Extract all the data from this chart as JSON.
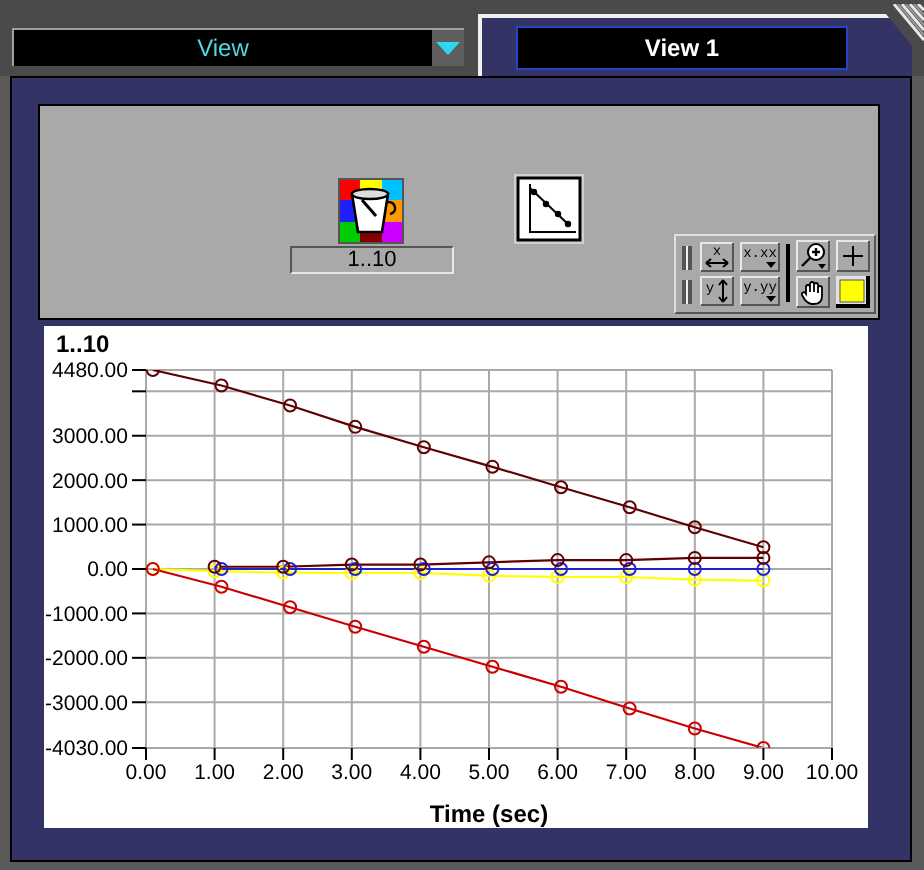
{
  "chart_data": {
    "type": "line",
    "ylabel": "1..10",
    "xlabel": "Time (sec)",
    "xlim": [
      0,
      10
    ],
    "xticks": [
      {
        "value": 0,
        "label": "0.00"
      },
      {
        "value": 1,
        "label": "1.00"
      },
      {
        "value": 2,
        "label": "2.00"
      },
      {
        "value": 3,
        "label": "3.00"
      },
      {
        "value": 4,
        "label": "4.00"
      },
      {
        "value": 5,
        "label": "5.00"
      },
      {
        "value": 6,
        "label": "6.00"
      },
      {
        "value": 7,
        "label": "7.00"
      },
      {
        "value": 8,
        "label": "8.00"
      },
      {
        "value": 9,
        "label": "9.00"
      },
      {
        "value": 10,
        "label": "10.00"
      }
    ],
    "ylim": [
      -4030,
      4480
    ],
    "yticks": [
      {
        "value": 4480,
        "label": "4480.00"
      },
      {
        "value": 4000,
        "label": null
      },
      {
        "value": 3000,
        "label": "3000.00"
      },
      {
        "value": 2000,
        "label": "2000.00"
      },
      {
        "value": 1000,
        "label": "1000.00"
      },
      {
        "value": 0,
        "label": "0.00"
      },
      {
        "value": -1000,
        "label": "-1000.00"
      },
      {
        "value": -2000,
        "label": "-2000.00"
      },
      {
        "value": -3000,
        "label": "-3000.00"
      },
      {
        "value": -4030,
        "label": "-4030.00"
      }
    ],
    "grid": true,
    "marker": "circle",
    "series": [
      {
        "color": "#ffff00",
        "x": [
          0.1,
          1,
          2,
          3,
          4,
          5,
          6,
          7,
          8,
          9
        ],
        "values": [
          0,
          -50,
          -80,
          -90,
          -90,
          -150,
          -180,
          -180,
          -240,
          -260
        ]
      },
      {
        "color": "#2222cc",
        "x": [
          1.1,
          2.1,
          3.05,
          4.05,
          5.05,
          6.05,
          7.05,
          8.0,
          9.0
        ],
        "values": [
          0,
          0,
          0,
          0,
          0,
          0,
          0,
          0,
          0
        ]
      },
      {
        "color": "#600000",
        "x": [
          1,
          2,
          3,
          4,
          5,
          6,
          7,
          8,
          9
        ],
        "values": [
          50,
          50,
          100,
          100,
          150,
          200,
          200,
          250,
          250
        ]
      },
      {
        "color": "#600000",
        "x": [
          0.1,
          1.1,
          2.1,
          3.05,
          4.05,
          5.05,
          6.05,
          7.05,
          8.0,
          9.0
        ],
        "values": [
          4480,
          4130,
          3680,
          3200,
          2740,
          2300,
          1840,
          1390,
          940,
          490
        ]
      },
      {
        "color": "#cc0000",
        "x": [
          0.1,
          1.1,
          2.1,
          3.05,
          4.05,
          5.05,
          6.05,
          7.05,
          8.0,
          9.0
        ],
        "values": [
          0,
          -400,
          -860,
          -1300,
          -1750,
          -2200,
          -2650,
          -3140,
          -3590,
          -4030
        ]
      }
    ],
    "annotations": [
      "View",
      "View 1",
      "1..10",
      "x",
      "x.xx",
      "y",
      "y.yy"
    ]
  }
}
